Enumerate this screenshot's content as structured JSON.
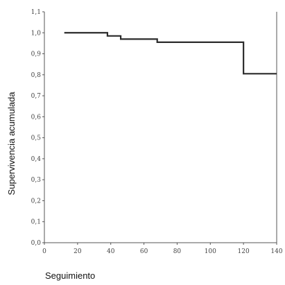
{
  "chart_data": {
    "type": "line",
    "title": "",
    "xlabel": "Seguimiento",
    "ylabel": "Supervivencia acumulada",
    "xlim": [
      0,
      140
    ],
    "ylim": [
      0.0,
      1.1
    ],
    "x_ticks": [
      0,
      20,
      40,
      60,
      80,
      100,
      120,
      140
    ],
    "x_tick_labels": [
      "0",
      "20",
      "40",
      "60",
      "80",
      "100",
      "120",
      "140"
    ],
    "y_ticks": [
      0.0,
      0.1,
      0.2,
      0.3,
      0.4,
      0.5,
      0.6,
      0.7,
      0.8,
      0.9,
      1.0,
      1.1
    ],
    "y_tick_labels": [
      "0,0",
      "0,1",
      "0,2",
      "0,3",
      "0,4",
      "0,5",
      "0,6",
      "0,7",
      "0,8",
      "0,9",
      "1,0",
      "1,1"
    ],
    "grid": false,
    "step": true,
    "series": [
      {
        "x": [
          12,
          38,
          46,
          68,
          120,
          140
        ],
        "y": [
          1.0,
          0.985,
          0.97,
          0.955,
          0.805,
          0.805
        ]
      }
    ],
    "colors": {
      "line": "#2b2b2b",
      "axis": "#555555"
    }
  }
}
